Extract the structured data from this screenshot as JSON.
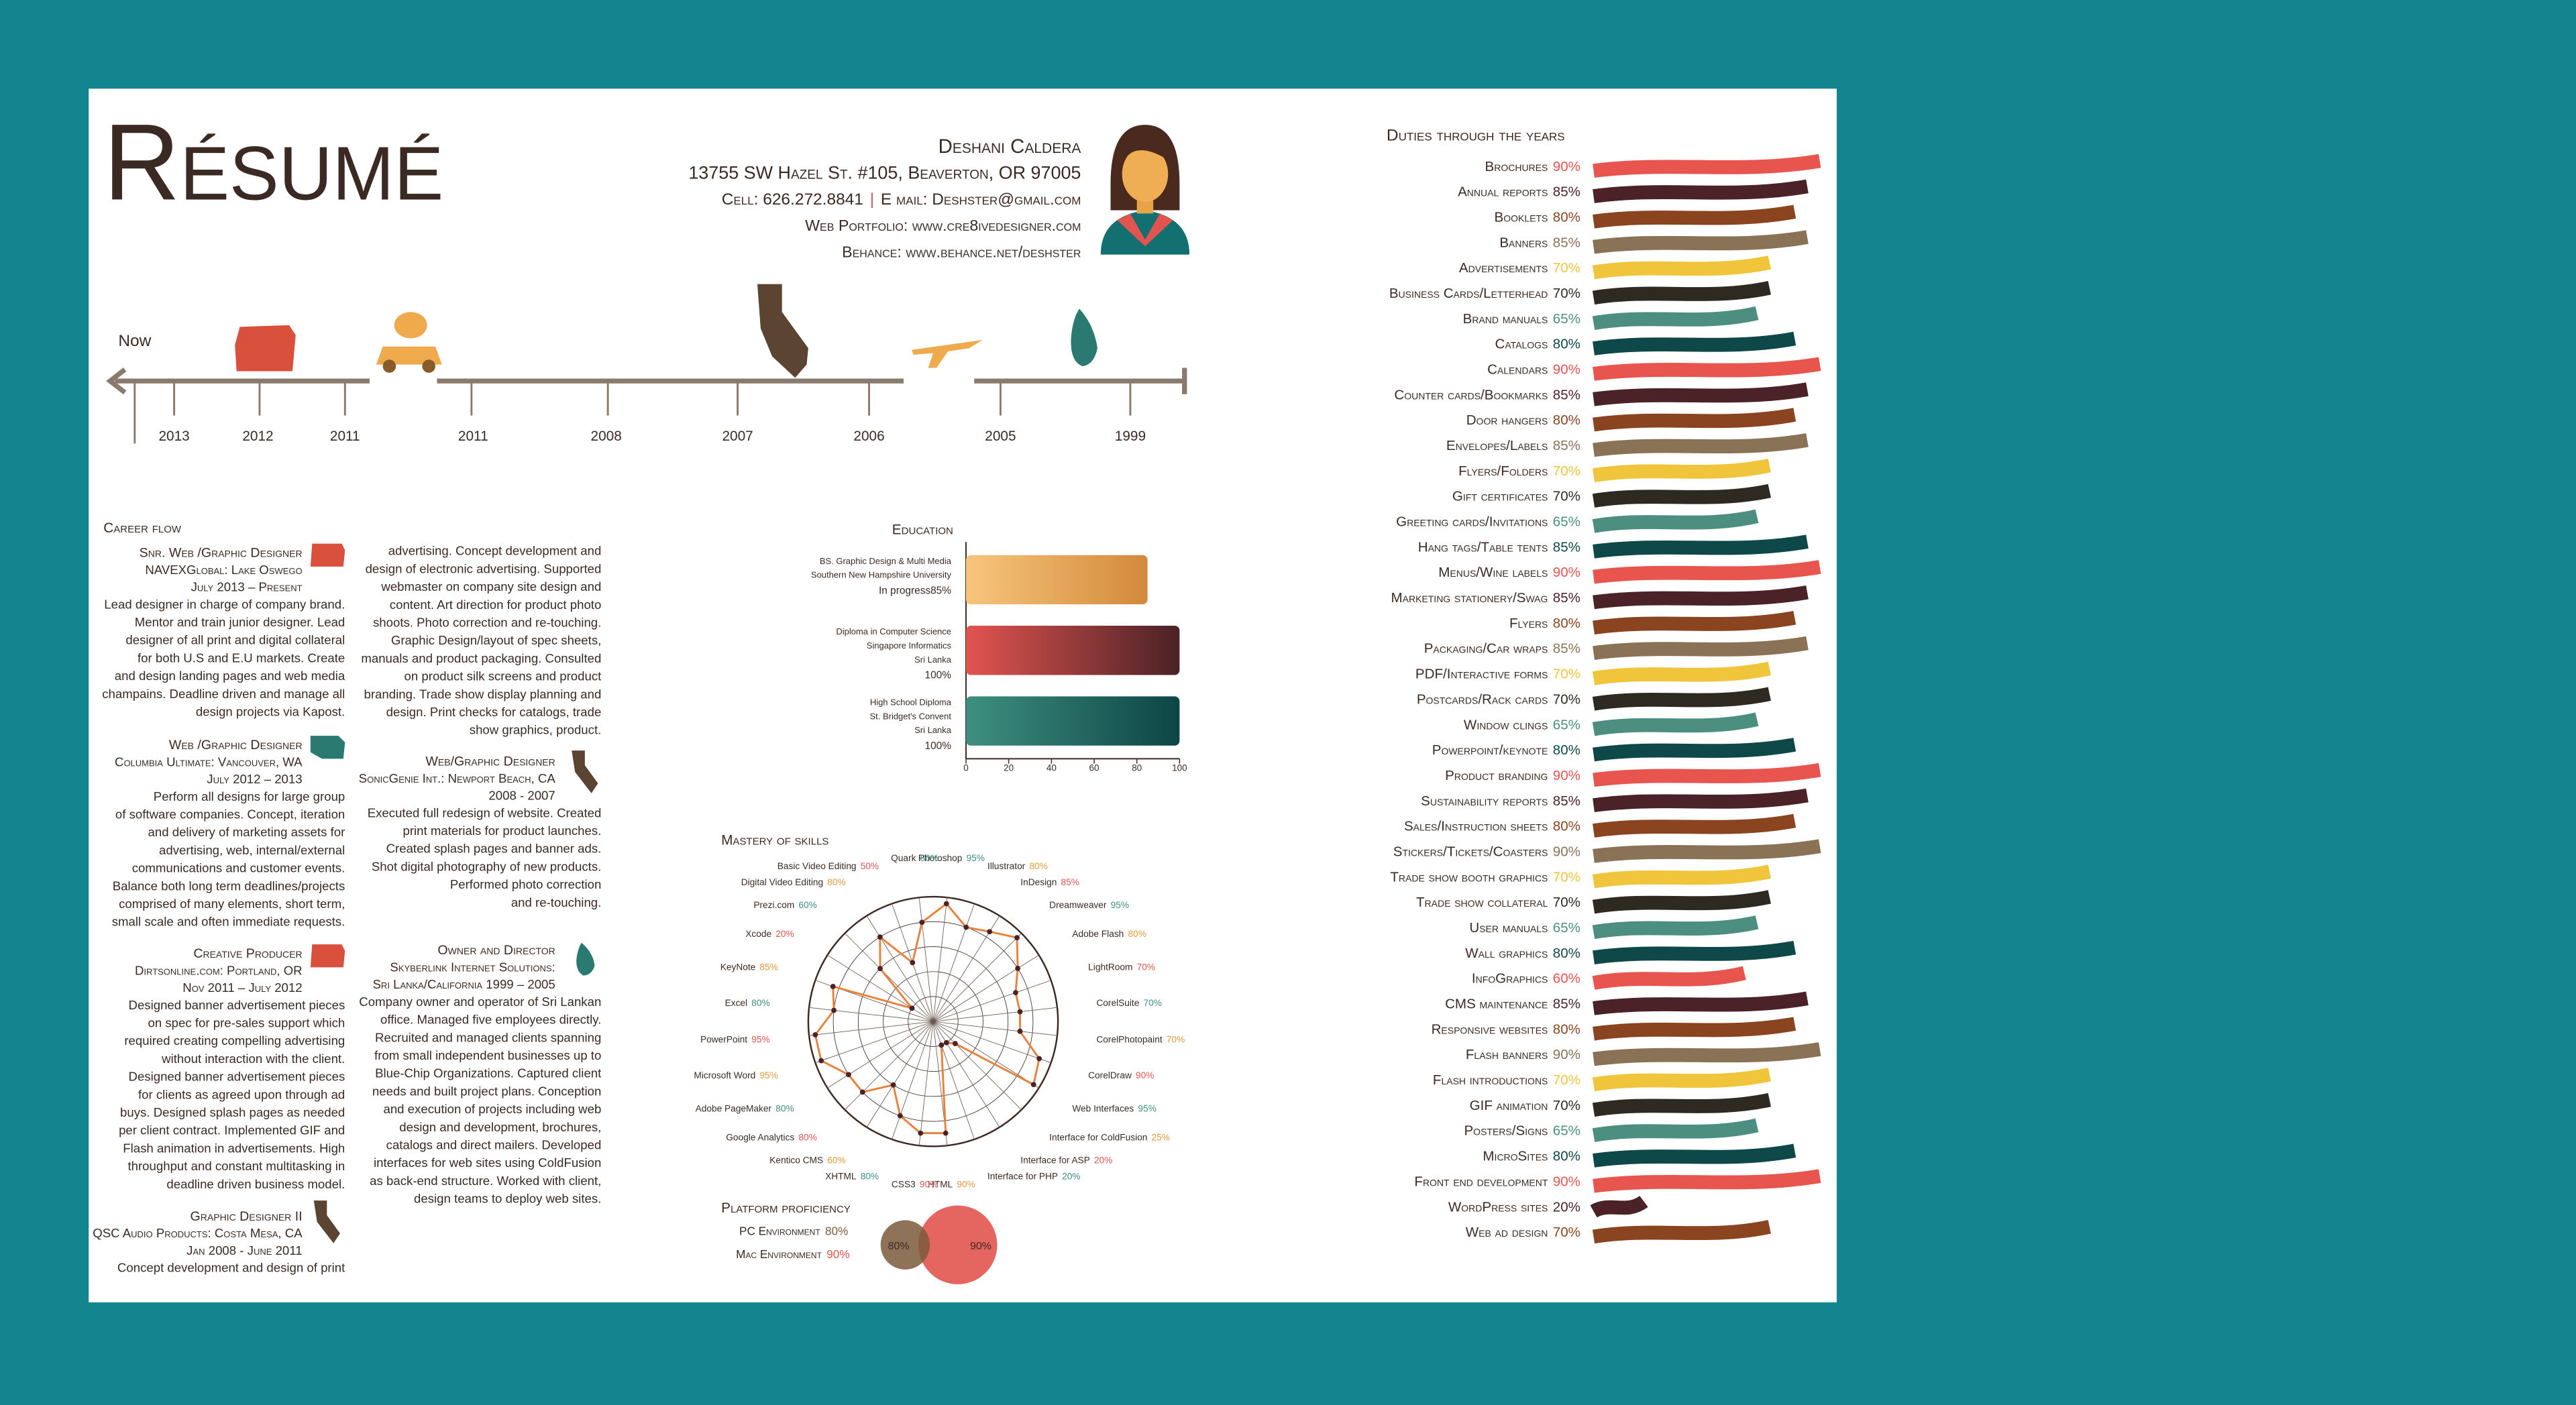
{
  "header": {
    "title": "Résumé",
    "name": "Deshani Caldera",
    "address": "13755 SW Hazel St. #105, Beaverton, OR 97005",
    "cell": "Cell: 626.272.8841",
    "separator": "|",
    "email": "E mail: Deshster@gmail.com",
    "portfolio": "Web Portfolio: www.cre8ivedesigner.com",
    "behance": "Behance: www.behance.net/deshster"
  },
  "timeline": {
    "label": "Now",
    "years": [
      "2013",
      "2012",
      "2011",
      "2011",
      "2008",
      "2007",
      "2006",
      "2005",
      "1999"
    ]
  },
  "career": {
    "heading": "Career flow",
    "jobs": [
      {
        "title": "Snr. Web /Graphic Designer",
        "company": "NAVEXGlobal: Lake Oswego",
        "dates": "July 2013 – Present",
        "lines": [
          "Lead designer in charge of company brand.",
          "Mentor and train junior designer. Lead",
          "designer of all print and digital collateral",
          "for both U.S and E.U markets. Create",
          "and design landing pages and web media",
          "champains. Deadline driven and  manage all",
          "design projects via Kapost."
        ]
      },
      {
        "title": "Web /Graphic Designer",
        "company": "Columbia Ultimate: Vancouver, WA",
        "dates": "July 2012 – 2013",
        "lines": [
          "Perform all designs for large group",
          "of software companies. Concept, iteration",
          "and delivery of marketing assets for",
          "advertising, web, internal/external",
          "communications and customer events.",
          "Balance both long term deadlines/projects",
          "comprised of many elements, short term,",
          "small scale and often immediate requests."
        ]
      },
      {
        "title": "Creative Producer",
        "company": "Dirtsonline.com: Portland, OR",
        "dates": "Nov 2011 – July 2012",
        "lines": [
          "Designed banner advertisement pieces",
          "on spec for pre-sales support which",
          "required creating compelling advertising",
          "without interaction with the client.",
          "Designed banner advertisement pieces",
          "for clients as agreed upon through ad",
          "buys. Designed splash pages as needed",
          "per client contract. Implemented GIF and",
          "Flash animation in advertisements. High",
          "throughput and constant multitasking in",
          "deadline driven business model."
        ]
      },
      {
        "title": "Graphic Designer II",
        "company": "QSC Audio Products: Costa Mesa, CA",
        "dates": "Jan 2008 - June 2011",
        "lines": [
          "Concept development and design of print"
        ],
        "continued_lines": [
          "advertising. Concept development and",
          "design of electronic advertising. Supported",
          "webmaster on company site design and",
          "content. Art direction for product photo",
          "shoots. Photo correction and re-touching.",
          "Graphic Design/layout of spec sheets,",
          "manuals and product packaging. Consulted",
          "on product silk screens and product",
          "branding. Trade show display planning and",
          "design. Print checks for catalogs, trade",
          "show graphics, product."
        ]
      },
      {
        "title": "Web/Graphic Designer",
        "company": "SonicGenie Int.: Newport Beach, CA",
        "dates": "2008 - 2007",
        "lines": [
          "Executed full redesign of website. Created",
          "print materials for product launches.",
          "Created splash pages and banner ads.",
          "Shot digital photography of new products.",
          "Performed photo correction",
          "and re-touching."
        ]
      },
      {
        "title": "Owner and Director",
        "company": "Skyberlink Internet Solutions:",
        "dates": "Sri Lanka/California 1999 – 2005",
        "lines": [
          "Company owner and operator of Sri Lankan",
          "office. Managed five employees directly.",
          "Recruited and managed clients spanning",
          "from small independent businesses up to",
          "Blue-Chip Organizations. Captured client",
          "needs and built project plans. Conception",
          "and execution of projects including web",
          "design and development, brochures,",
          "catalogs and direct mailers. Developed",
          "interfaces for web sites using ColdFusion",
          "as back-end structure. Worked with client,",
          "design teams to deploy web sites."
        ]
      }
    ]
  },
  "chart_data": [
    {
      "type": "bar",
      "orientation": "horizontal",
      "title": "Education",
      "categories": [
        [
          "BS. Graphic Design & Multi Media",
          "Southern New Hampshire University"
        ],
        [
          "Diploma in Computer Science",
          "Singapore Informatics",
          "Sri Lanka"
        ],
        [
          "High School Diploma",
          "St. Bridget's Convent",
          "Sri Lanka"
        ]
      ],
      "status": "In progress",
      "values": [
        85,
        100,
        100
      ],
      "value_labels": [
        "85%",
        "100%",
        "100%"
      ],
      "colors": [
        [
          "#f6c67c",
          "#d3893b"
        ],
        [
          "#e2544f",
          "#4a2226"
        ],
        [
          "#3f8f80",
          "#0c4545"
        ]
      ],
      "label_colors": [
        "#e59a3a",
        "#e2544f",
        "#3f8f80"
      ],
      "xlim": [
        0,
        100
      ],
      "xticks": [
        0,
        20,
        40,
        60,
        80,
        100
      ]
    },
    {
      "type": "radar",
      "title": "Mastery of skills",
      "categories": [
        "Photoshop",
        "Illustrator",
        "InDesign",
        "Dreamweaver",
        "Adobe Flash",
        "LightRoom",
        "CorelSuite",
        "CorelPhotopaint",
        "CorelDraw",
        "Web Interfaces",
        "Interface for ColdFusion",
        "Interface for ASP",
        "Interface for PHP",
        "HTML",
        "CSS3",
        "XHTML",
        "Kentico CMS",
        "Google Analytics",
        "Adobe PageMaker",
        "Microsoft Word",
        "PowerPoint",
        "Excel",
        "KeyNote",
        "Xcode",
        "Prezi.com",
        "Digital Video Editing",
        "Basic Video Editing",
        "Quark"
      ],
      "values": [
        95,
        80,
        85,
        95,
        80,
        70,
        70,
        70,
        90,
        95,
        25,
        20,
        20,
        90,
        90,
        80,
        60,
        80,
        80,
        95,
        95,
        80,
        85,
        20,
        60,
        80,
        50,
        80
      ],
      "value_labels": [
        "95%",
        "80%",
        "85%",
        "95%",
        "80%",
        "70%",
        "70%",
        "70%",
        "90%",
        "95%",
        "25%",
        "20%",
        "20%",
        "90%",
        "90%",
        "80%",
        "60%",
        "80%",
        "80%",
        "95%",
        "95%",
        "80%",
        "85%",
        "20%",
        "60%",
        "80%",
        "50%",
        "80%"
      ],
      "color": "#e8823a",
      "label_colors": [
        "#3f8f80",
        "#e59a3a",
        "#e2544f"
      ],
      "rlim": [
        0,
        100
      ],
      "rticks": [
        20,
        40,
        60,
        80,
        100
      ]
    },
    {
      "type": "venn",
      "title": "Platform proficiency",
      "categories": [
        "PC Environment",
        "Mac Environment"
      ],
      "values": [
        80,
        90
      ],
      "value_labels": [
        "80%",
        "90%"
      ],
      "colors": [
        "#7b5a3c",
        "#e2544f"
      ]
    },
    {
      "type": "wave-bar",
      "title": "Duties through the years",
      "categories": [
        "Brochures",
        "Annual reports",
        "Booklets",
        "Banners",
        "Advertisements",
        "Business Cards/Letterhead",
        "Brand manuals",
        "Catalogs",
        "Calendars",
        "Counter cards/Bookmarks",
        "Door hangers",
        "Envelopes/Labels",
        "Flyers/Folders",
        "Gift certificates",
        "Greeting cards/Invitations",
        "Hang tags/Table tents",
        "Menus/Wine labels",
        "Marketing stationery/Swag",
        "Flyers",
        "Packaging/Car wraps",
        "PDF/Interactive forms",
        "Postcards/Rack cards",
        "Window clings",
        "Powerpoint/keynote",
        "Product branding",
        "Sustainability reports",
        "Sales/Instruction sheets",
        "Stickers/Tickets/Coasters",
        "Trade show booth graphics",
        "Trade show collateral",
        "User manuals",
        "Wall graphics",
        "InfoGraphics",
        "CMS maintenance",
        "Responsive websites",
        "Flash banners",
        "Flash introductions",
        "GIF animation",
        "Posters/Signs",
        "MicroSites",
        "Front end development",
        "WordPress sites",
        "Web ad design"
      ],
      "values": [
        90,
        85,
        80,
        85,
        70,
        70,
        65,
        80,
        90,
        85,
        80,
        85,
        70,
        70,
        65,
        85,
        90,
        85,
        80,
        85,
        70,
        70,
        65,
        80,
        90,
        85,
        80,
        90,
        70,
        70,
        65,
        80,
        60,
        85,
        80,
        90,
        70,
        70,
        65,
        80,
        90,
        20,
        70
      ],
      "value_labels": [
        "90%",
        "85%",
        "80%",
        "85%",
        "70%",
        "70%",
        "65%",
        "80%",
        "90%",
        "85%",
        "80%",
        "85%",
        "70%",
        "70%",
        "65%",
        "85%",
        "90%",
        "85%",
        "80%",
        "85%",
        "70%",
        "70%",
        "65%",
        "80%",
        "90%",
        "85%",
        "80%",
        "90%",
        "70%",
        "70%",
        "65%",
        "80%",
        "60%",
        "85%",
        "80%",
        "90%",
        "70%",
        "70%",
        "65%",
        "80%",
        "90%",
        "20%",
        "70%"
      ],
      "colors": [
        "#e8554f",
        "#4a2228",
        "#8a4520",
        "#8a7257",
        "#f0c53c",
        "#2e2a22",
        "#4c8e80",
        "#0e4848"
      ],
      "xlim": [
        0,
        100
      ]
    }
  ]
}
